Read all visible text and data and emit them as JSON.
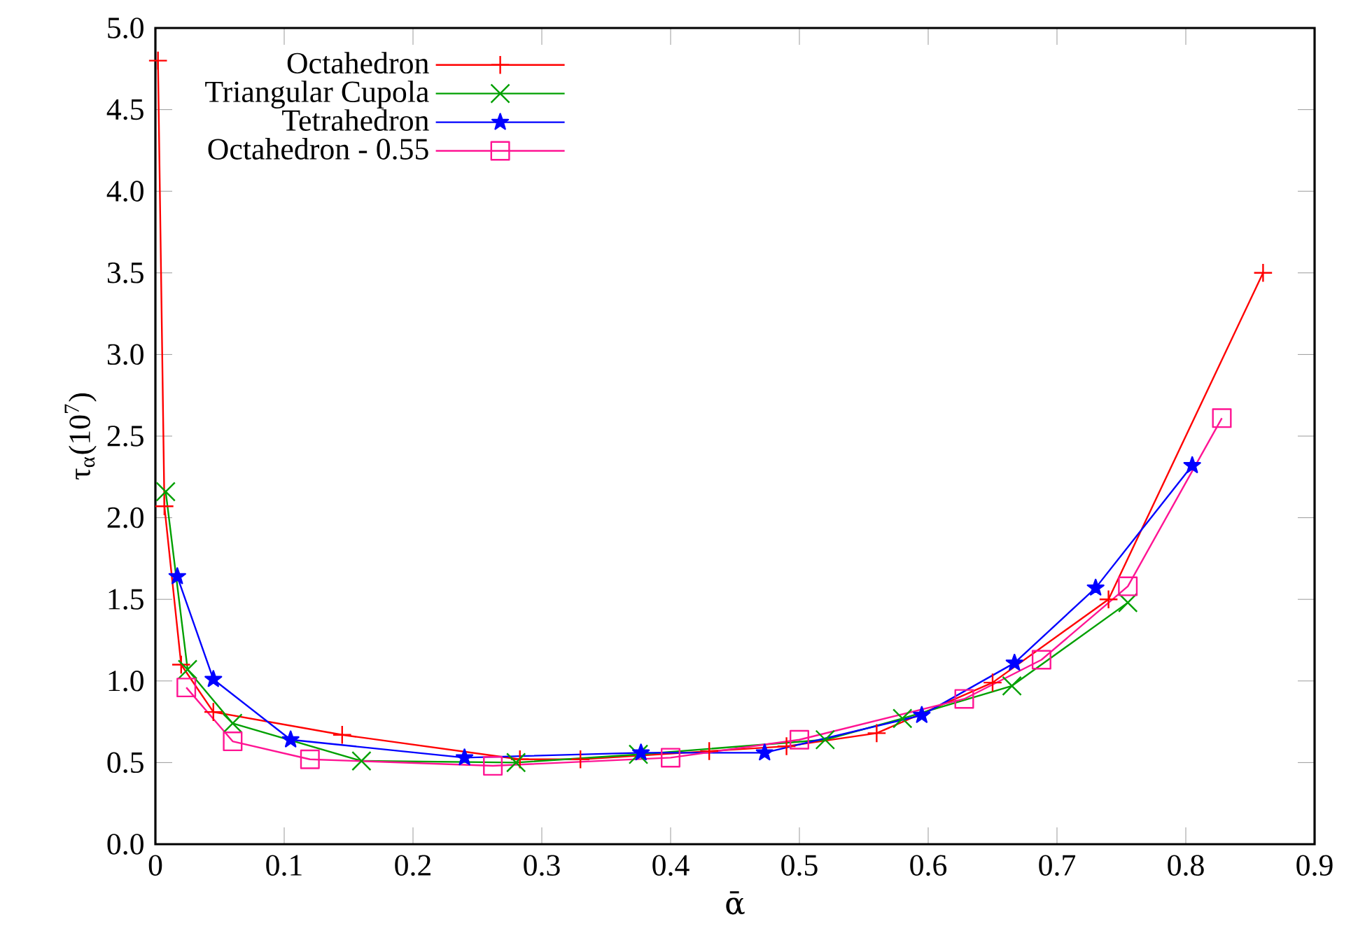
{
  "chart_data": {
    "type": "line",
    "xlabel": "ᾱ",
    "ylabel": "τ$_{α}$(10$^{7}$)",
    "xlim": [
      0,
      0.9
    ],
    "ylim": [
      0,
      5
    ],
    "xticks": [
      0,
      0.1,
      0.2,
      0.3,
      0.4,
      0.5,
      0.6,
      0.7,
      0.8,
      0.9
    ],
    "yticks": [
      {
        "value": 0,
        "label": "0.0"
      },
      {
        "value": 0.5,
        "label": "0.5"
      },
      {
        "value": 1,
        "label": "1.0"
      },
      {
        "value": 1.5,
        "label": "1.5"
      },
      {
        "value": 2,
        "label": "2.0"
      },
      {
        "value": 2.5,
        "label": "2.5"
      },
      {
        "value": 3,
        "label": "3.0"
      },
      {
        "value": 3.5,
        "label": "3.5"
      },
      {
        "value": 4,
        "label": "4.0"
      },
      {
        "value": 4.5,
        "label": "4.5"
      },
      {
        "value": 5,
        "label": "5.0"
      }
    ],
    "grid": false,
    "legend": "top left",
    "line_style": "solid",
    "series": [
      {
        "name": "Octahedron",
        "color": "#ff0000",
        "marker": "plus",
        "x": [
          0.002,
          0.007,
          0.02,
          0.045,
          0.145,
          0.283,
          0.33,
          0.43,
          0.49,
          0.56,
          0.65,
          0.74,
          0.86
        ],
        "values": [
          4.8,
          2.07,
          1.1,
          0.81,
          0.67,
          0.52,
          0.52,
          0.57,
          0.6,
          0.68,
          0.99,
          1.5,
          3.5
        ]
      },
      {
        "name": "Triangular Cupola",
        "color": "#00a000",
        "marker": "cross",
        "x": [
          0.008,
          0.025,
          0.06,
          0.16,
          0.28,
          0.375,
          0.52,
          0.58,
          0.665,
          0.755
        ],
        "values": [
          2.16,
          1.07,
          0.74,
          0.51,
          0.5,
          0.55,
          0.64,
          0.77,
          0.97,
          1.48
        ]
      },
      {
        "name": "Tetrahedron",
        "color": "#0000ff",
        "marker": "star",
        "x": [
          0.017,
          0.045,
          0.105,
          0.24,
          0.377,
          0.473,
          0.595,
          0.667,
          0.73,
          0.805
        ],
        "values": [
          1.64,
          1.01,
          0.64,
          0.53,
          0.56,
          0.56,
          0.79,
          1.11,
          1.57,
          2.32
        ]
      },
      {
        "name": "Octahedron - 0.55",
        "color": "#ff1493",
        "marker": "square",
        "x": [
          0.024,
          0.06,
          0.12,
          0.262,
          0.4,
          0.5,
          0.628,
          0.688,
          0.755,
          0.828
        ],
        "values": [
          0.96,
          0.63,
          0.52,
          0.48,
          0.53,
          0.64,
          0.89,
          1.13,
          1.58,
          2.61
        ]
      }
    ]
  }
}
